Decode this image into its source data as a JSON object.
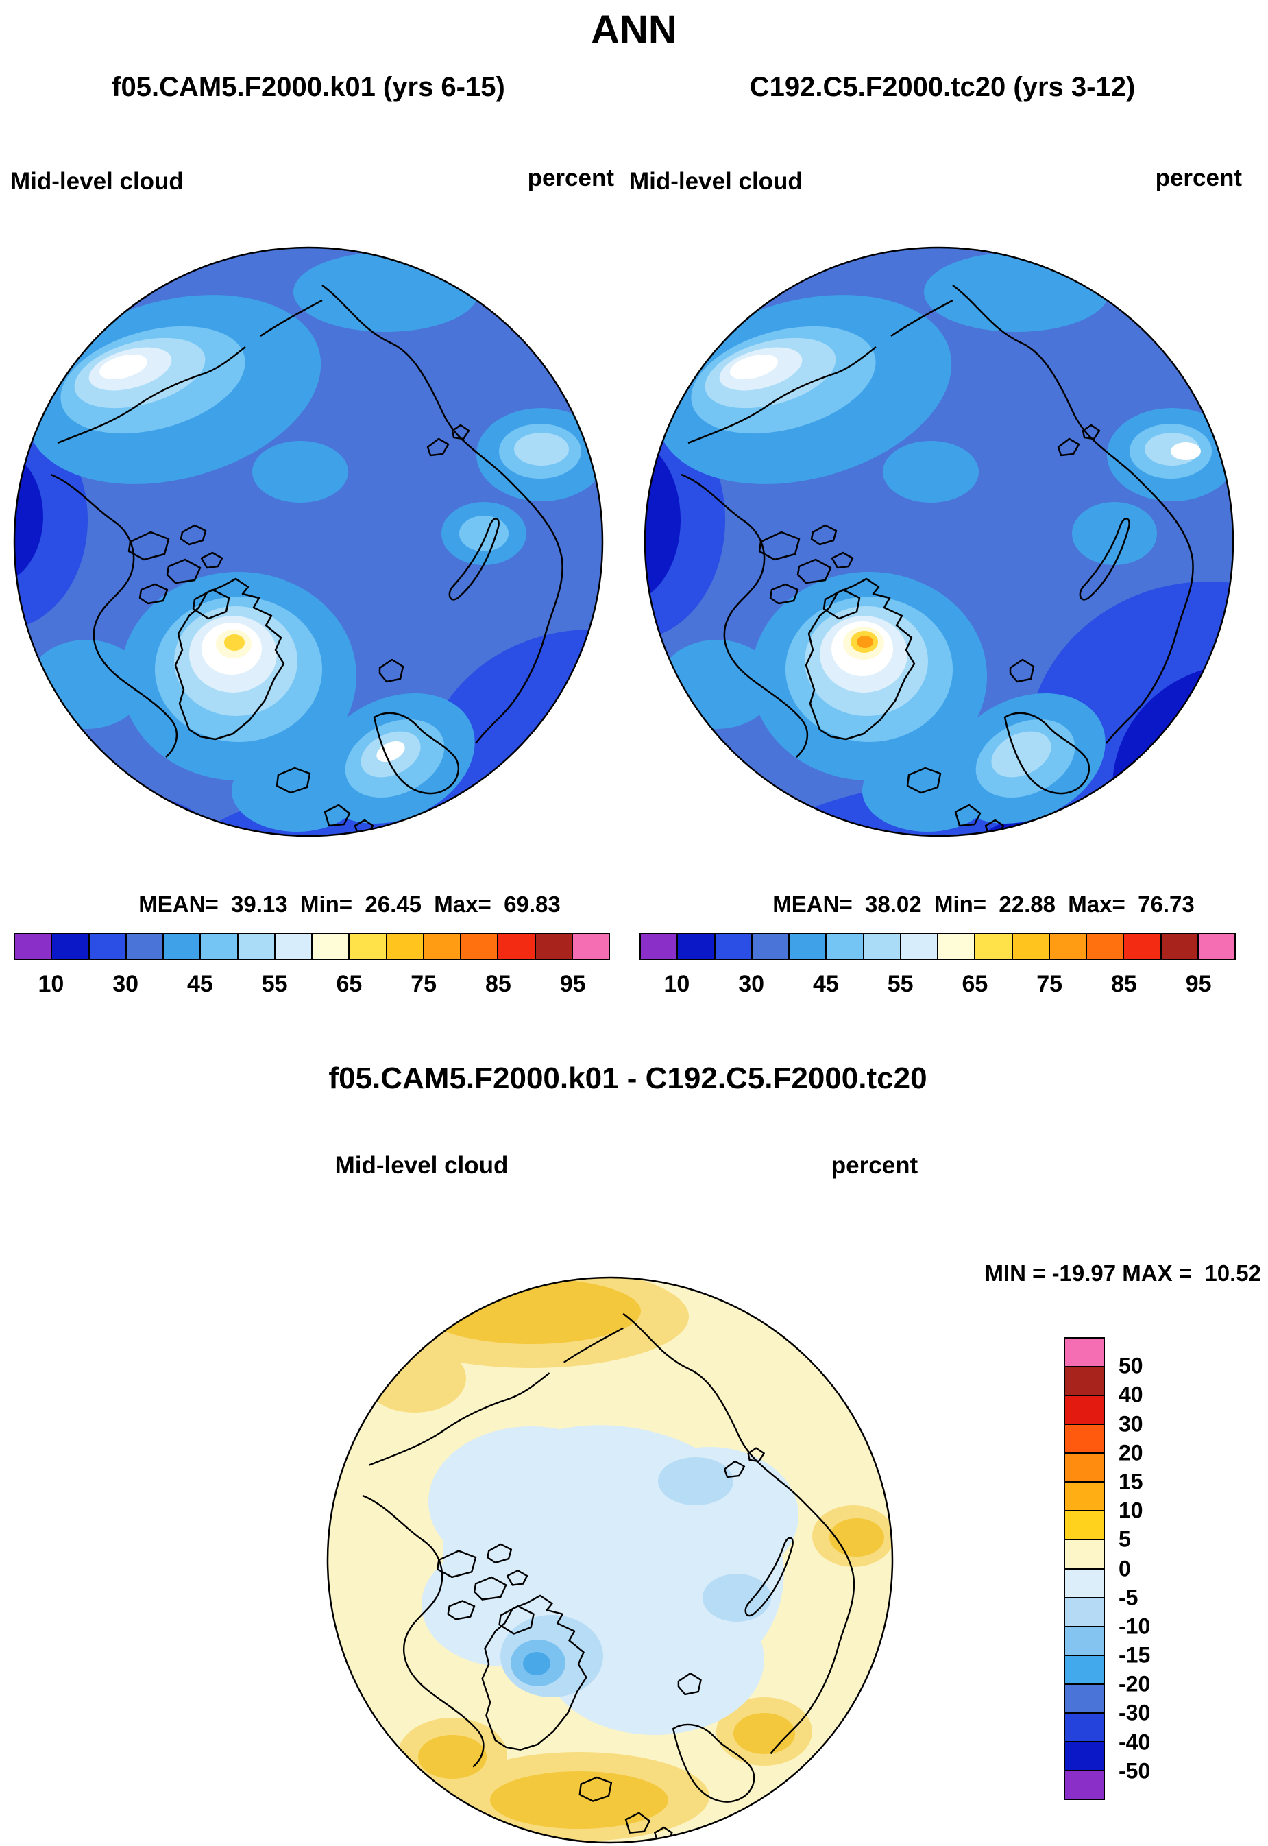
{
  "page": {
    "title": "ANN"
  },
  "panels": {
    "left": {
      "subtitle": "f05.CAM5.F2000.k01 (yrs 6-15)",
      "variable": "Mid-level cloud",
      "units": "percent",
      "stats": "MEAN=  39.13  Min=  26.45  Max=  69.83"
    },
    "right": {
      "subtitle": "C192.C5.F2000.tc20 (yrs 3-12)",
      "variable": "Mid-level cloud",
      "units": "percent",
      "stats": "MEAN=  38.02  Min=  22.88  Max=  76.73"
    },
    "diff": {
      "title": "f05.CAM5.F2000.k01 - C192.C5.F2000.tc20",
      "variable": "Mid-level cloud",
      "units": "percent",
      "minmax": "MIN = -19.97 MAX =  10.52"
    }
  },
  "chart_data": {
    "type": "heatmap",
    "projection": "north-polar-stereographic",
    "title": "ANN",
    "panels": [
      {
        "id": "left",
        "model": "f05.CAM5.F2000.k01",
        "years": "yrs 6-15",
        "variable": "Mid-level cloud",
        "units": "percent",
        "mean": 39.13,
        "min": 26.45,
        "max": 69.83
      },
      {
        "id": "right",
        "model": "C192.C5.F2000.tc20",
        "years": "yrs 3-12",
        "variable": "Mid-level cloud",
        "units": "percent",
        "mean": 38.02,
        "min": 22.88,
        "max": 76.73
      },
      {
        "id": "diff",
        "model": "f05.CAM5.F2000.k01 - C192.C5.F2000.tc20",
        "variable": "Mid-level cloud",
        "units": "percent",
        "min": -19.97,
        "max": 10.52
      }
    ],
    "top_colorbar": {
      "orientation": "horizontal",
      "colors": [
        "#8b2fc9",
        "#0a18c8",
        "#2b4fe4",
        "#4a74d8",
        "#3fa2e8",
        "#74c4f4",
        "#aadcf8",
        "#d8edfc",
        "#fffcd8",
        "#ffe14a",
        "#ffc41e",
        "#ff9c14",
        "#ff700e",
        "#f22b12",
        "#a8231c",
        "#f56eb4"
      ],
      "levels": [
        10,
        20,
        30,
        40,
        45,
        50,
        55,
        60,
        65,
        70,
        75,
        80,
        85,
        90,
        95
      ],
      "ticks": [
        "10",
        "30",
        "45",
        "55",
        "65",
        "75",
        "85",
        "95"
      ]
    },
    "diff_colorbar": {
      "orientation": "vertical",
      "colors": [
        "#f56eb4",
        "#a8231c",
        "#e31a10",
        "#ff5a0e",
        "#ff8c0e",
        "#ffae14",
        "#ffd21e",
        "#fdf6c8",
        "#ddeefb",
        "#b4daf6",
        "#84c4f0",
        "#42aaec",
        "#4a74d8",
        "#2443dc",
        "#0a18c8",
        "#8b2fc9"
      ],
      "labels": [
        "50",
        "40",
        "30",
        "20",
        "15",
        "10",
        "5",
        "0",
        "-5",
        "-10",
        "-15",
        "-20",
        "-30",
        "-40",
        "-50"
      ]
    },
    "palette": {
      "map_base": "#4a74d8",
      "map_sky": "#3fa2e8",
      "map_light": "#74c4f4",
      "map_pale": "#aadcf8",
      "map_vpale": "#dff0fc",
      "map_white": "#ffffff",
      "map_cream": "#fffbd8",
      "map_yellow": "#ffd83c",
      "map_orange": "#ff9c14",
      "map_royal": "#2b4fe4",
      "map_navy": "#0a18c8",
      "diff_base": "#fbf4c6",
      "diff_yellow": "#f3c83c",
      "diff_yellow_halo": "#f8dd80",
      "diff_pale_blue": "#d9ecf9",
      "diff_light_blue": "#b7dcf6",
      "diff_sky": "#49a8e8",
      "diff_sky_halo": "#7cc2f0",
      "coast": "#000000"
    }
  }
}
